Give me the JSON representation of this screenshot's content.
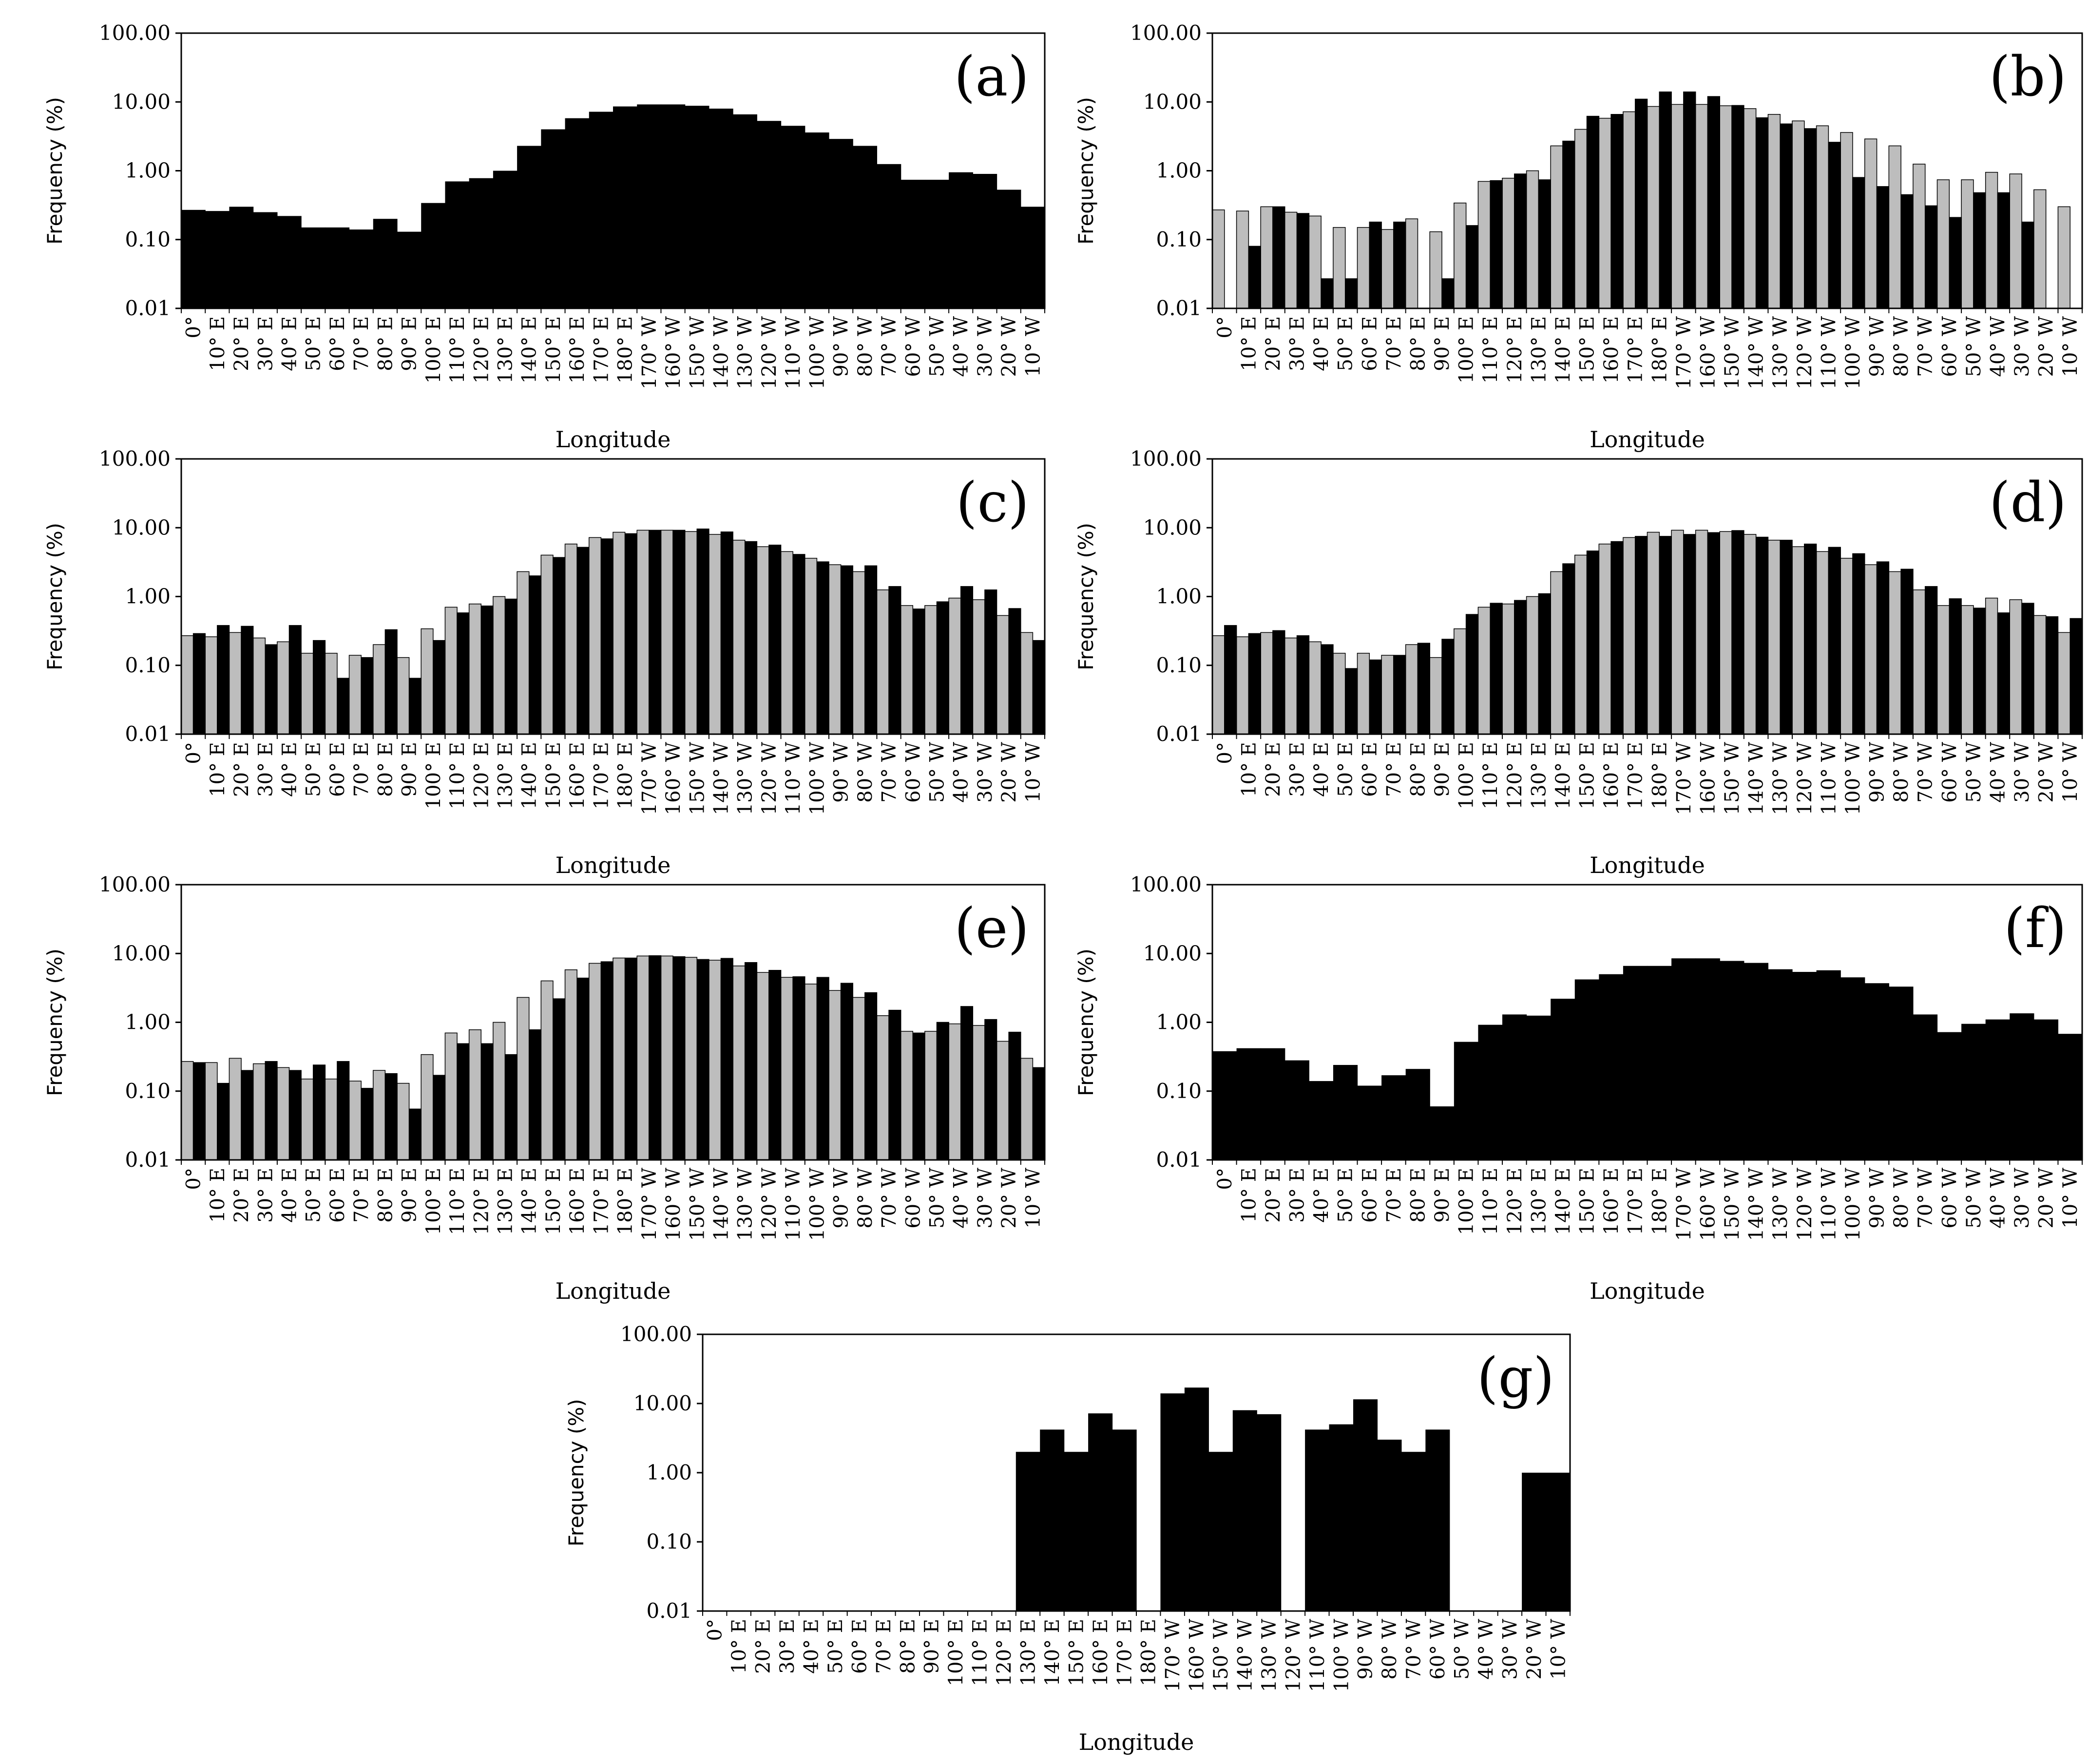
{
  "figure": {
    "x_axis_label": "Longitude",
    "y_axis_label": "Frequency (%)",
    "y_tick_labels": [
      "100.00",
      "10.00",
      "1.00",
      "0.10",
      "0.01"
    ],
    "x_tick_labels_36": [
      "0°",
      "10° E",
      "20° E",
      "30° E",
      "40° E",
      "50° E",
      "60° E",
      "70° E",
      "80° E",
      "90° E",
      "100° E",
      "110° E",
      "120° E",
      "130° E",
      "140° E",
      "150° E",
      "160° E",
      "170° E",
      "180° E",
      "170° W",
      "160° W",
      "150° W",
      "140° W",
      "130° W",
      "120° W",
      "110° W",
      "100° W",
      "90° W",
      "80° W",
      "70° W",
      "60° W",
      "50° W",
      "40° W",
      "30° W",
      "20° W",
      "10° W"
    ],
    "x_tick_labels_g": [
      "0°",
      "10° E",
      "20° E",
      "30° E",
      "40° E",
      "50° E",
      "60° E",
      "70° E",
      "80° E",
      "90° E",
      "100° E",
      "110° E",
      "120° E",
      "130° E",
      "140° E",
      "150° E",
      "160° E",
      "170° E",
      "180° E",
      "170° W",
      "160° W",
      "150° W",
      "140° W",
      "130° W",
      "120° W",
      "110° W",
      "100° W",
      "90° W",
      "80° W",
      "70° W",
      "60° W",
      "50° W",
      "40° W",
      "30° W",
      "20° W",
      "10° W"
    ],
    "colors": {
      "series_black": "#000000",
      "series_gray": "#bdbdbd"
    }
  },
  "chart_data": [
    {
      "panel": "(a)",
      "type": "bar",
      "yscale": "log",
      "ylim": [
        0.01,
        100
      ],
      "series": [
        {
          "name": "black",
          "color": "#000000",
          "values": [
            0.27,
            0.26,
            0.3,
            0.25,
            0.22,
            0.15,
            0.15,
            0.14,
            0.2,
            0.13,
            0.34,
            0.7,
            0.78,
            1.0,
            2.3,
            4.0,
            5.8,
            7.2,
            8.6,
            9.2,
            9.2,
            8.8,
            8.0,
            6.6,
            5.3,
            4.5,
            3.6,
            2.9,
            2.3,
            1.25,
            0.74,
            0.74,
            0.95,
            0.9,
            0.53,
            0.3
          ]
        }
      ]
    },
    {
      "panel": "(b)",
      "type": "bar",
      "yscale": "log",
      "ylim": [
        0.01,
        100
      ],
      "series": [
        {
          "name": "gray",
          "color": "#bdbdbd",
          "values": [
            0.27,
            0.26,
            0.3,
            0.25,
            0.22,
            0.15,
            0.15,
            0.14,
            0.2,
            0.13,
            0.34,
            0.7,
            0.78,
            1.0,
            2.3,
            4.0,
            5.8,
            7.2,
            8.6,
            9.2,
            9.2,
            8.8,
            8.0,
            6.6,
            5.3,
            4.5,
            3.6,
            2.9,
            2.3,
            1.25,
            0.74,
            0.74,
            0.95,
            0.9,
            0.53,
            0.3
          ]
        },
        {
          "name": "black",
          "color": "#000000",
          "values": [
            0.01,
            0.08,
            0.3,
            0.24,
            0.027,
            0.027,
            0.18,
            0.18,
            0.01,
            0.027,
            0.16,
            0.72,
            0.9,
            0.74,
            2.7,
            6.2,
            6.6,
            11,
            14,
            14,
            12,
            8.9,
            5.9,
            4.8,
            4.1,
            2.6,
            0.8,
            0.59,
            0.45,
            0.31,
            0.21,
            0.48,
            0.48,
            0.18,
            0.01,
            0.01
          ]
        }
      ]
    },
    {
      "panel": "(c)",
      "type": "bar",
      "yscale": "log",
      "ylim": [
        0.01,
        100
      ],
      "series": [
        {
          "name": "gray",
          "color": "#bdbdbd",
          "values": [
            0.27,
            0.26,
            0.3,
            0.25,
            0.22,
            0.15,
            0.15,
            0.14,
            0.2,
            0.13,
            0.34,
            0.7,
            0.78,
            1.0,
            2.3,
            4.0,
            5.8,
            7.2,
            8.6,
            9.2,
            9.2,
            8.8,
            8.0,
            6.6,
            5.3,
            4.5,
            3.6,
            2.9,
            2.3,
            1.25,
            0.74,
            0.74,
            0.95,
            0.9,
            0.53,
            0.3
          ]
        },
        {
          "name": "black",
          "color": "#000000",
          "values": [
            0.29,
            0.38,
            0.37,
            0.2,
            0.38,
            0.23,
            0.065,
            0.13,
            0.33,
            0.065,
            0.23,
            0.58,
            0.73,
            0.92,
            2.0,
            3.7,
            5.2,
            6.9,
            8.2,
            9.2,
            9.2,
            9.6,
            8.7,
            6.3,
            5.6,
            4.1,
            3.2,
            2.8,
            2.8,
            1.4,
            0.66,
            0.84,
            1.4,
            1.25,
            0.67,
            0.23
          ]
        }
      ]
    },
    {
      "panel": "(d)",
      "type": "bar",
      "yscale": "log",
      "ylim": [
        0.01,
        100
      ],
      "series": [
        {
          "name": "gray",
          "color": "#bdbdbd",
          "values": [
            0.27,
            0.26,
            0.3,
            0.25,
            0.22,
            0.15,
            0.15,
            0.14,
            0.2,
            0.13,
            0.34,
            0.7,
            0.78,
            1.0,
            2.3,
            4.0,
            5.8,
            7.2,
            8.6,
            9.2,
            9.2,
            8.8,
            8.0,
            6.6,
            5.3,
            4.5,
            3.6,
            2.9,
            2.3,
            1.25,
            0.74,
            0.74,
            0.95,
            0.9,
            0.53,
            0.3
          ]
        },
        {
          "name": "black",
          "color": "#000000",
          "values": [
            0.38,
            0.29,
            0.32,
            0.27,
            0.2,
            0.09,
            0.12,
            0.14,
            0.21,
            0.24,
            0.55,
            0.8,
            0.88,
            1.1,
            3.0,
            4.6,
            6.3,
            7.5,
            7.5,
            8.0,
            8.5,
            9.1,
            7.3,
            6.6,
            5.8,
            5.2,
            4.2,
            3.2,
            2.5,
            1.4,
            0.93,
            0.68,
            0.58,
            0.8,
            0.51,
            0.48
          ]
        }
      ]
    },
    {
      "panel": "(e)",
      "type": "bar",
      "yscale": "log",
      "ylim": [
        0.01,
        100
      ],
      "series": [
        {
          "name": "gray",
          "color": "#bdbdbd",
          "values": [
            0.27,
            0.26,
            0.3,
            0.25,
            0.22,
            0.15,
            0.15,
            0.14,
            0.2,
            0.13,
            0.34,
            0.7,
            0.78,
            1.0,
            2.3,
            4.0,
            5.8,
            7.2,
            8.6,
            9.2,
            9.2,
            8.8,
            8.0,
            6.6,
            5.3,
            4.5,
            3.6,
            2.9,
            2.3,
            1.25,
            0.74,
            0.74,
            0.95,
            0.9,
            0.53,
            0.3
          ]
        },
        {
          "name": "black",
          "color": "#000000",
          "values": [
            0.26,
            0.13,
            0.2,
            0.27,
            0.2,
            0.24,
            0.27,
            0.11,
            0.18,
            0.055,
            0.17,
            0.49,
            0.49,
            0.34,
            0.78,
            2.2,
            4.4,
            7.6,
            8.6,
            9.3,
            9.0,
            8.2,
            8.5,
            7.4,
            5.7,
            4.6,
            4.5,
            3.7,
            2.7,
            1.5,
            0.7,
            1.0,
            1.7,
            1.1,
            0.72,
            0.22
          ]
        }
      ]
    },
    {
      "panel": "(f)",
      "type": "bar",
      "yscale": "log",
      "ylim": [
        0.01,
        100
      ],
      "series": [
        {
          "name": "black",
          "color": "#000000",
          "values": [
            0.38,
            0.42,
            0.42,
            0.28,
            0.14,
            0.24,
            0.12,
            0.17,
            0.21,
            0.06,
            0.52,
            0.92,
            1.3,
            1.25,
            2.2,
            4.2,
            5.0,
            6.6,
            6.6,
            8.5,
            8.5,
            7.8,
            7.3,
            5.9,
            5.4,
            5.7,
            4.5,
            3.7,
            3.3,
            1.3,
            0.72,
            0.95,
            1.1,
            1.35,
            1.1,
            0.68
          ]
        }
      ]
    },
    {
      "panel": "(g)",
      "type": "bar",
      "yscale": "log",
      "ylim": [
        0.01,
        100
      ],
      "series": [
        {
          "name": "black",
          "color": "#000000",
          "values": [
            0,
            0,
            0,
            0,
            0,
            0,
            0,
            0,
            0,
            0,
            0,
            0,
            0,
            2.0,
            4.2,
            2.0,
            7.2,
            4.2,
            0,
            14,
            17,
            2.0,
            8.0,
            7.0,
            0,
            4.2,
            5.0,
            11.5,
            3.0,
            2.0,
            4.2,
            0,
            0,
            0,
            1.0,
            1.0
          ]
        }
      ]
    }
  ]
}
